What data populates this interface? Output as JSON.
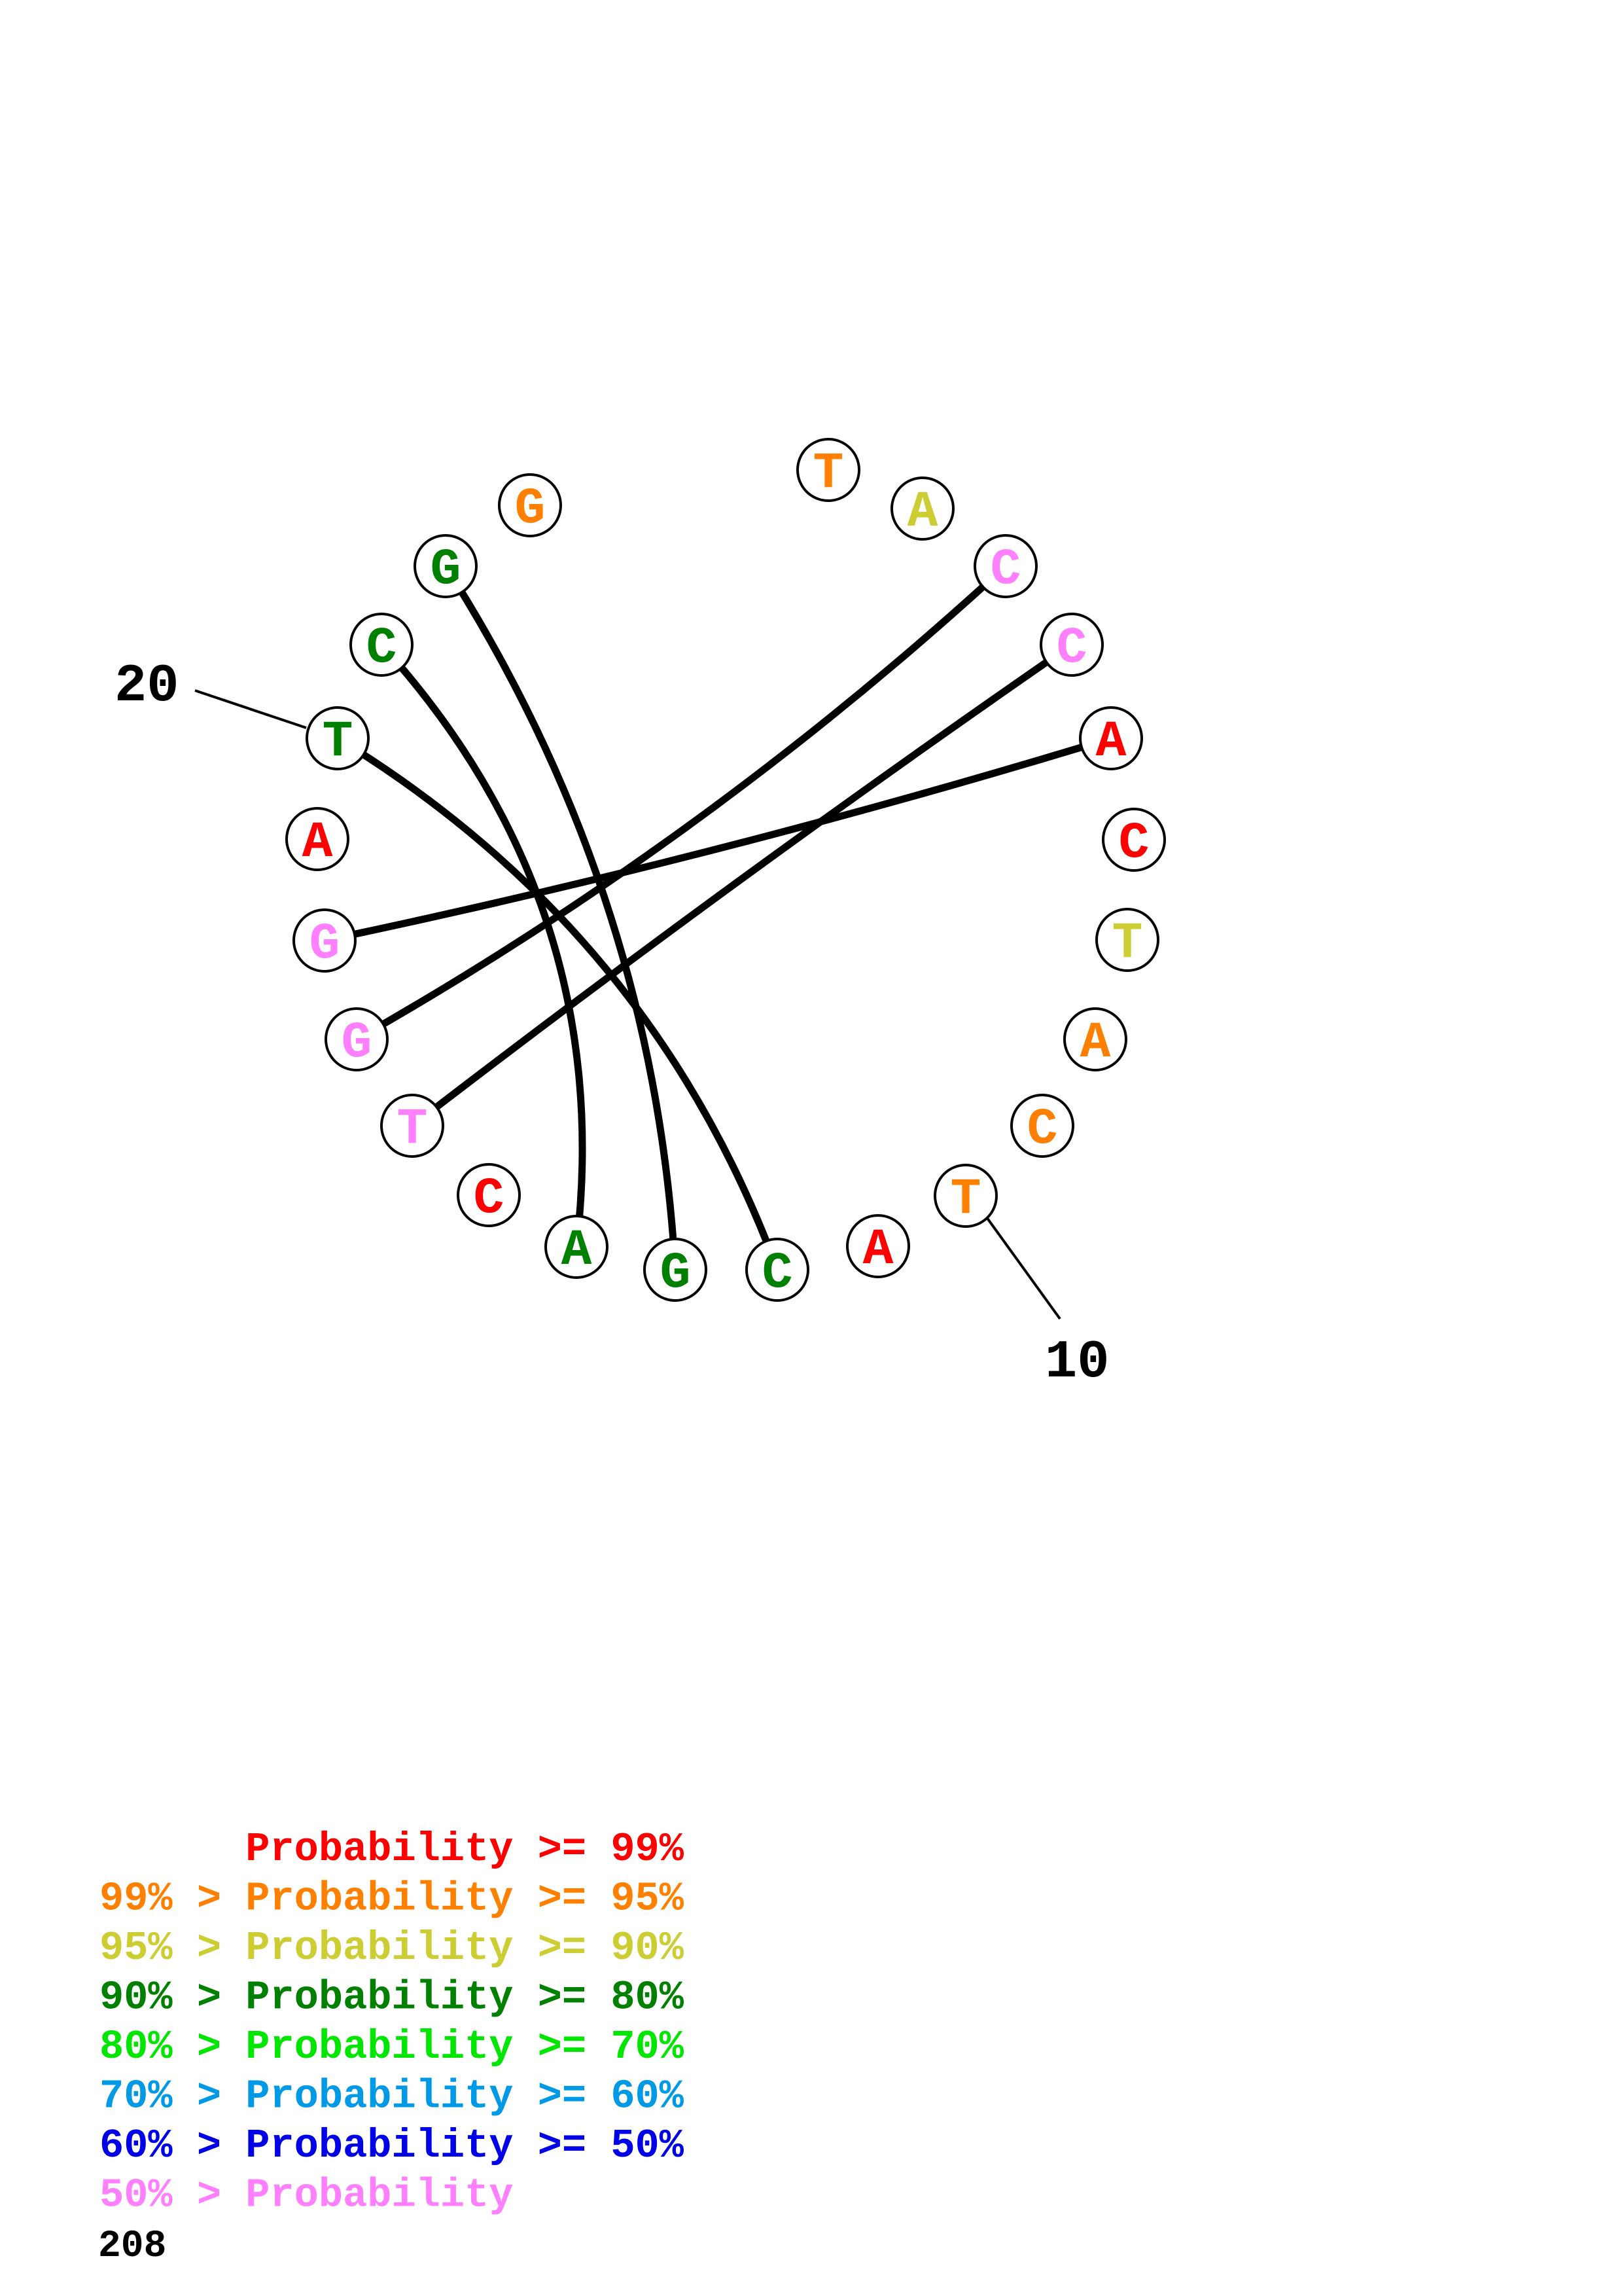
{
  "colors": {
    "p99": "#ff0000",
    "p95": "#ff8000",
    "p90": "#cccc33",
    "p80": "#008000",
    "p70": "#00e600",
    "p60": "#0099e6",
    "p50": "#0000e6",
    "plow": "#ff80ff",
    "outline": "#000000"
  },
  "sequence": [
    {
      "index": 1,
      "base": "A",
      "color": "p99"
    },
    {
      "index": 2,
      "base": "C",
      "color": "p99"
    },
    {
      "index": 3,
      "base": "T",
      "color": "p90"
    },
    {
      "index": 4,
      "base": "A",
      "color": "p95"
    },
    {
      "index": 5,
      "base": "C",
      "color": "p95"
    },
    {
      "index": 6,
      "base": "T",
      "color": "p95"
    },
    {
      "index": 7,
      "base": "A",
      "color": "p99"
    },
    {
      "index": 8,
      "base": "C",
      "color": "p80"
    },
    {
      "index": 9,
      "base": "G",
      "color": "p80"
    },
    {
      "index": 10,
      "base": "A",
      "color": "p80"
    },
    {
      "index": 11,
      "base": "C",
      "color": "p99"
    },
    {
      "index": 12,
      "base": "T",
      "color": "plow"
    },
    {
      "index": 13,
      "base": "G",
      "color": "plow"
    },
    {
      "index": 14,
      "base": "G",
      "color": "plow"
    },
    {
      "index": 15,
      "base": "A",
      "color": "p99"
    },
    {
      "index": 16,
      "base": "T",
      "color": "p80"
    },
    {
      "index": 17,
      "base": "C",
      "color": "p80"
    },
    {
      "index": 18,
      "base": "G",
      "color": "p80"
    },
    {
      "index": 19,
      "base": "G",
      "color": "p95"
    },
    {
      "index": 20,
      "base": "T",
      "color": "p95"
    },
    {
      "index": 21,
      "base": "A",
      "color": "p90"
    },
    {
      "index": 22,
      "base": "C",
      "color": "plow"
    },
    {
      "index": 23,
      "base": "C",
      "color": "plow"
    }
  ],
  "pairs": [
    [
      9,
      18
    ],
    [
      10,
      17
    ],
    [
      8,
      16
    ],
    [
      23,
      12
    ],
    [
      22,
      13
    ],
    [
      1,
      14
    ]
  ],
  "position_labels": [
    {
      "text": "20",
      "at": 16
    },
    {
      "text": "10",
      "at": 6
    }
  ],
  "legend": [
    {
      "prefix": "    ",
      "text": "Probability >= 99%",
      "color": "p99"
    },
    {
      "prefix": "",
      "text": "99% > Probability >= 95%",
      "color": "p95"
    },
    {
      "prefix": "",
      "text": "95% > Probability >= 90%",
      "color": "p90"
    },
    {
      "prefix": "",
      "text": "90% > Probability >= 80%",
      "color": "p80"
    },
    {
      "prefix": "",
      "text": "80% > Probability >= 70%",
      "color": "p70"
    },
    {
      "prefix": "",
      "text": "70% > Probability >= 60%",
      "color": "p60"
    },
    {
      "prefix": "",
      "text": "60% > Probability >= 50%",
      "color": "p50"
    },
    {
      "prefix": "",
      "text": "50% > Probability",
      "color": "plow"
    }
  ],
  "footer": "208"
}
